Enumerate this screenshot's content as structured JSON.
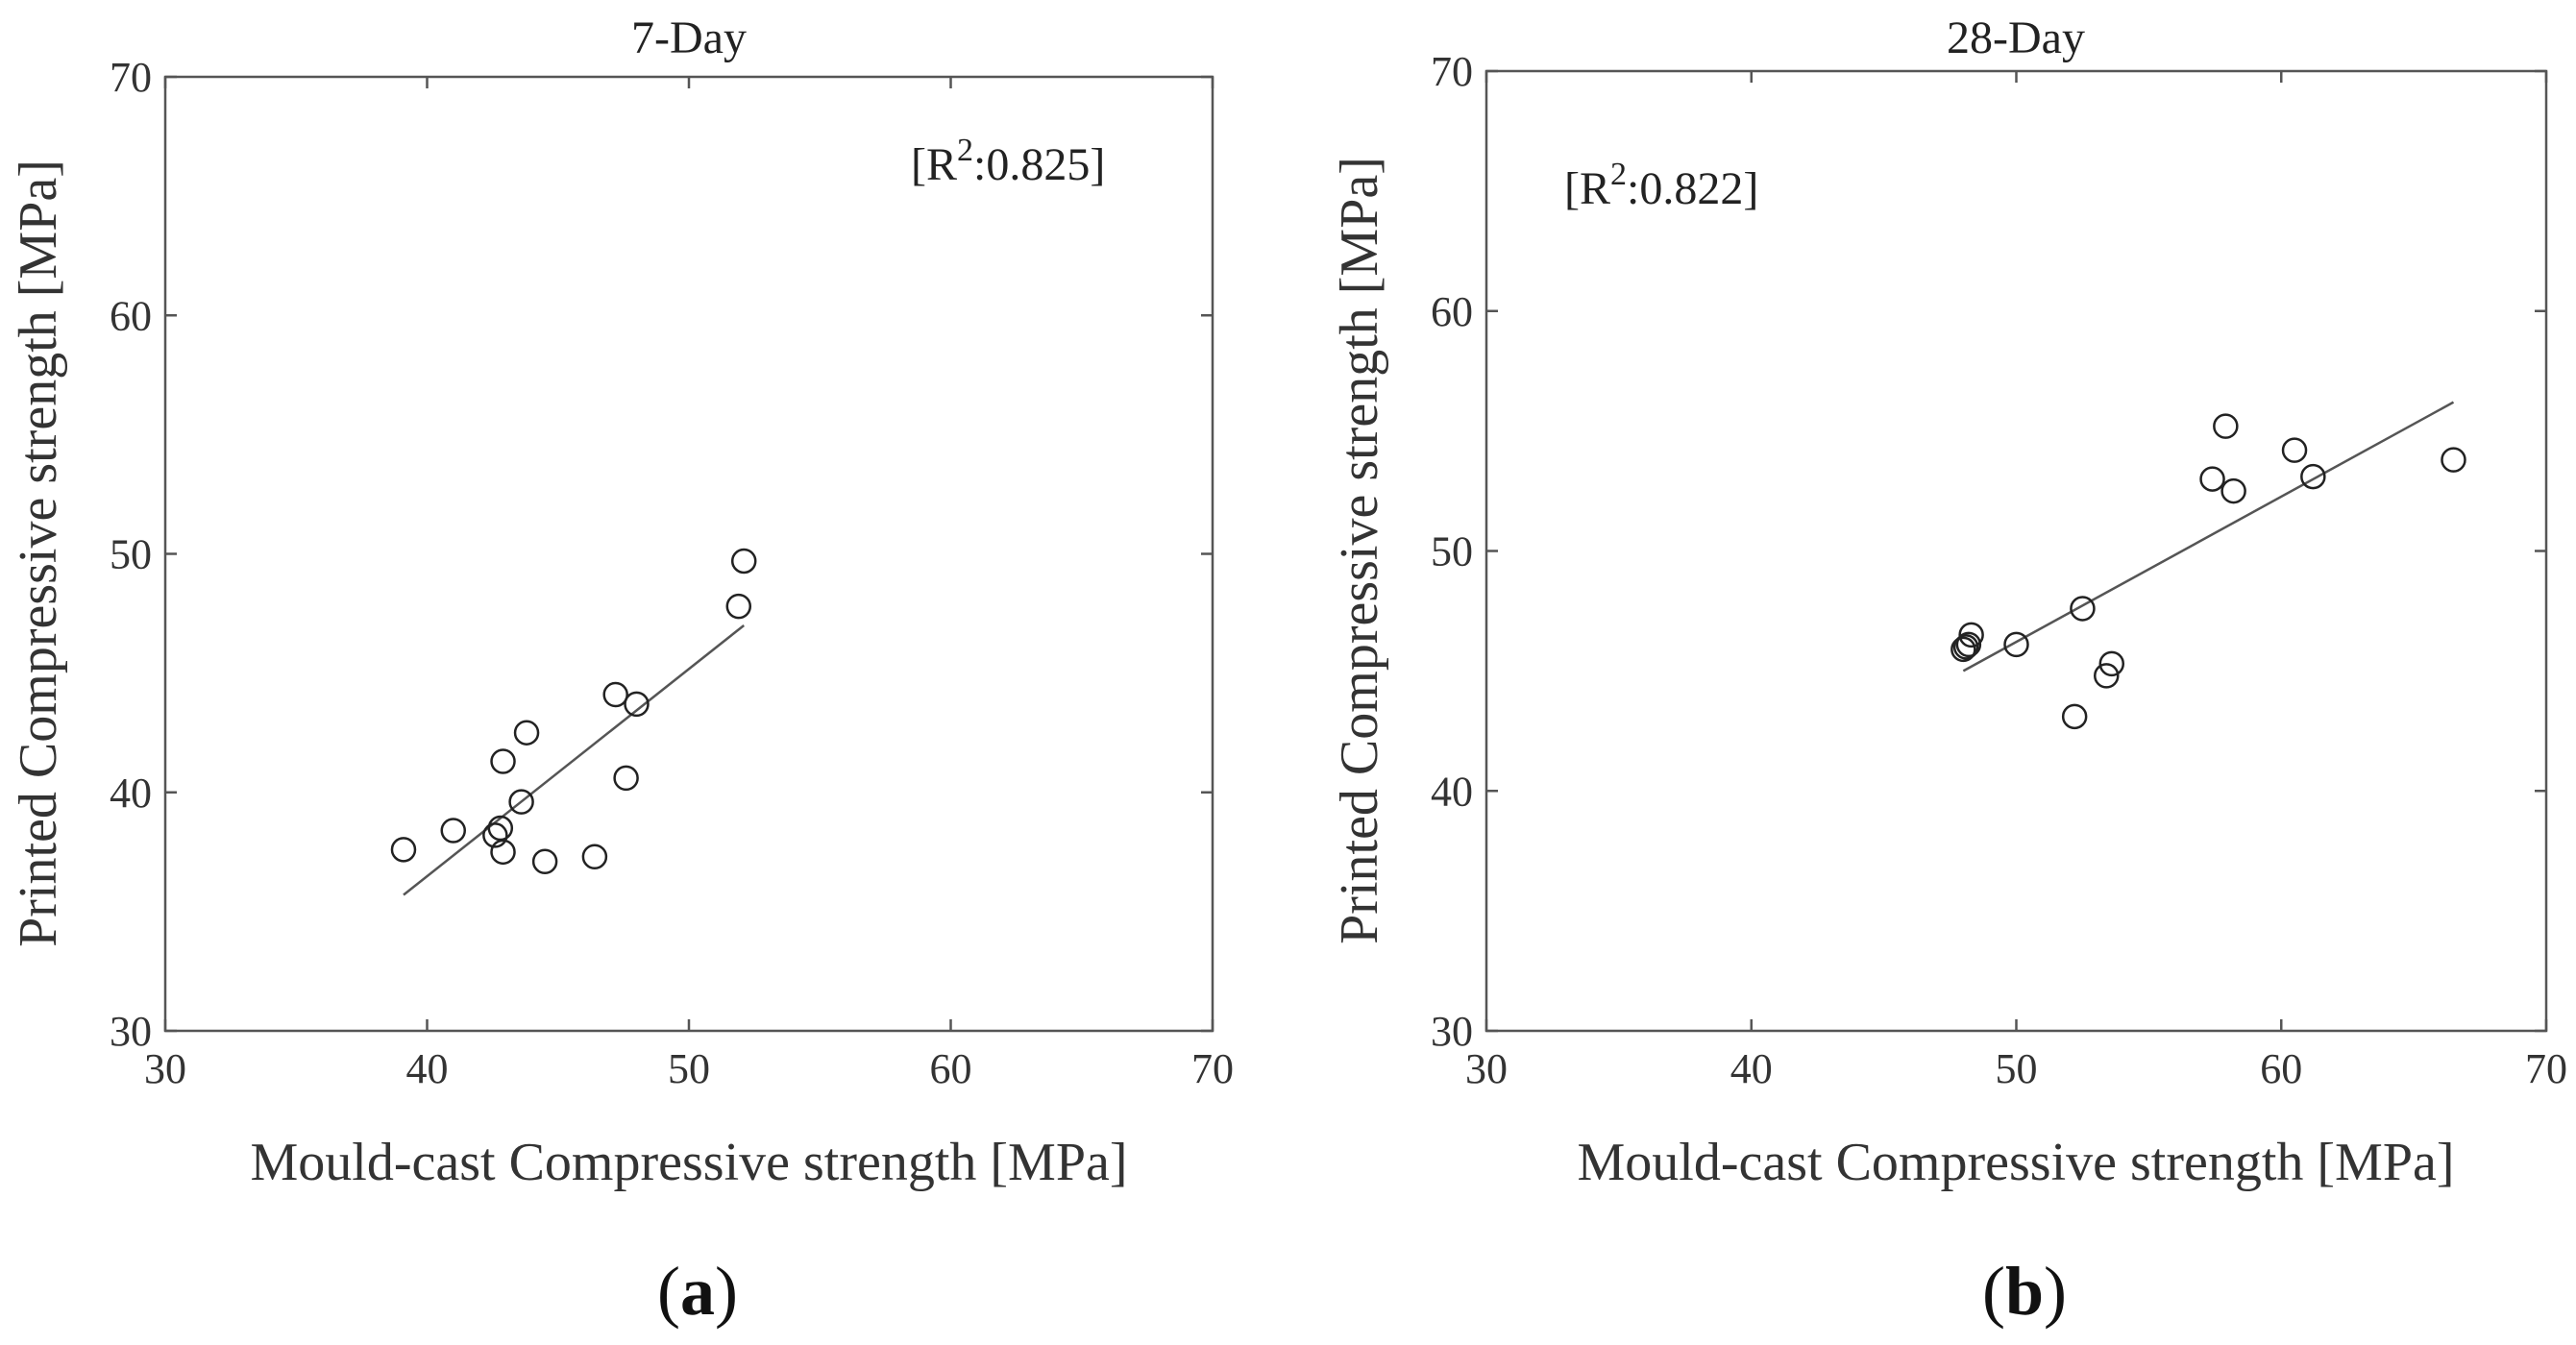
{
  "chart_data": [
    {
      "type": "scatter",
      "panel_label": "a",
      "title": "7-Day",
      "xlabel": "Mould-cast Compressive strength [MPa]",
      "ylabel": "Printed Compressive strength [MPa]",
      "xlim": [
        30,
        70
      ],
      "ylim": [
        30,
        70
      ],
      "xticks": [
        30,
        40,
        50,
        60,
        70
      ],
      "yticks": [
        30,
        40,
        50,
        60,
        70
      ],
      "annotation": {
        "text": "[R",
        "sup": "2",
        "value": ":0.825]"
      },
      "series": [
        {
          "name": "data",
          "x": [
            39.1,
            41.0,
            42.6,
            42.8,
            42.9,
            42.9,
            43.6,
            43.8,
            44.5,
            46.4,
            47.2,
            47.6,
            48.0,
            51.9,
            52.1
          ],
          "y": [
            37.6,
            38.4,
            38.2,
            38.5,
            37.5,
            41.3,
            39.6,
            42.5,
            37.1,
            37.3,
            44.1,
            40.6,
            43.7,
            47.8,
            49.7
          ]
        }
      ],
      "fit_line": {
        "x": [
          39.1,
          52.1
        ],
        "y": [
          35.7,
          47.0
        ]
      }
    },
    {
      "type": "scatter",
      "panel_label": "b",
      "title": "28-Day",
      "xlabel": "Mould-cast Compressive strength [MPa]",
      "ylabel": "Printed Compressive strength [MPa]",
      "xlim": [
        30,
        70
      ],
      "ylim": [
        30,
        70
      ],
      "xticks": [
        30,
        40,
        50,
        60,
        70
      ],
      "yticks": [
        30,
        40,
        50,
        60,
        70
      ],
      "annotation": {
        "text": "[R",
        "sup": "2",
        "value": ":0.822]"
      },
      "series": [
        {
          "name": "data",
          "x": [
            48.0,
            48.1,
            48.2,
            48.3,
            50.0,
            52.2,
            52.5,
            53.4,
            53.6,
            57.4,
            57.9,
            58.2,
            60.5,
            61.2,
            66.5
          ],
          "y": [
            45.9,
            46.0,
            46.1,
            46.5,
            46.1,
            43.1,
            47.6,
            44.8,
            45.3,
            53.0,
            55.2,
            52.5,
            54.2,
            53.1,
            53.8
          ]
        }
      ],
      "fit_line": {
        "x": [
          48.0,
          66.5
        ],
        "y": [
          45.0,
          56.2
        ]
      }
    }
  ]
}
